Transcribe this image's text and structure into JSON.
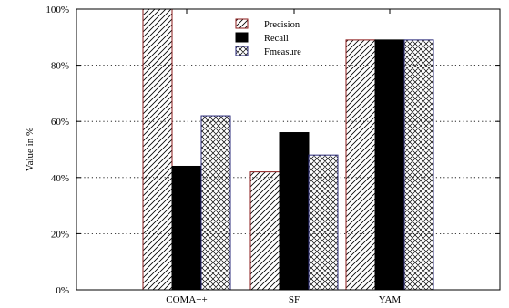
{
  "chart_data": {
    "type": "bar",
    "categories": [
      "COMA++",
      "SF",
      "YAM"
    ],
    "series": [
      {
        "name": "Precision",
        "values": [
          100,
          42,
          89
        ],
        "pattern": "diagonal-hatch"
      },
      {
        "name": "Recall",
        "values": [
          44,
          56,
          89
        ],
        "pattern": "solid-black"
      },
      {
        "name": "Fmeasure",
        "values": [
          62,
          48,
          89
        ],
        "pattern": "crosshatch"
      }
    ],
    "ylabel": "Value in %",
    "ylim": [
      0,
      100
    ],
    "yticks": [
      "0%",
      "20%",
      "40%",
      "60%",
      "80%",
      "100%"
    ],
    "grid": "horizontal-dotted",
    "legend_position": "top-center"
  }
}
